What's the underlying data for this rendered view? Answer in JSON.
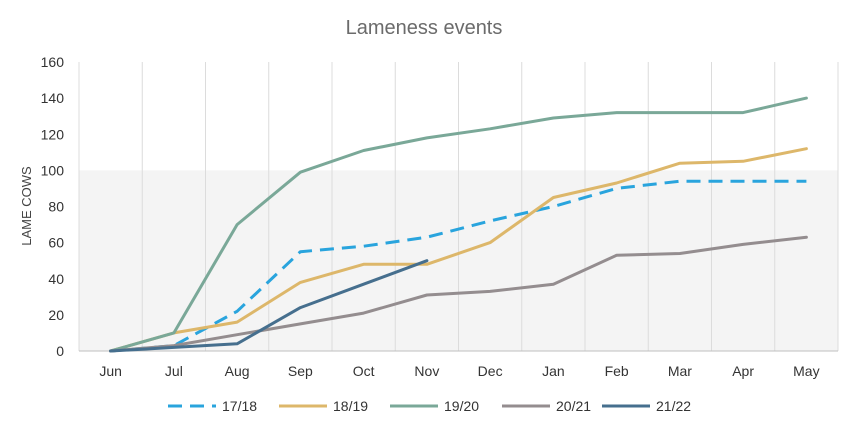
{
  "chart_data": {
    "type": "line",
    "title": "Lameness events",
    "xlabel": "",
    "ylabel": "LAME COWS",
    "ylim": [
      0,
      160
    ],
    "yticks": [
      0,
      20,
      40,
      60,
      80,
      100,
      120,
      140,
      160
    ],
    "grid": "vertical",
    "legend_position": "bottom",
    "categories": [
      "Jun",
      "Jul",
      "Aug",
      "Sep",
      "Oct",
      "Nov",
      "Dec",
      "Jan",
      "Feb",
      "Mar",
      "Apr",
      "May"
    ],
    "series": [
      {
        "name": "17/18",
        "color": "#29a4dd",
        "dash": true,
        "values": [
          0,
          3,
          22,
          55,
          58,
          63,
          72,
          80,
          90,
          94,
          94,
          94
        ]
      },
      {
        "name": "18/19",
        "color": "#ddb76a",
        "dash": false,
        "values": [
          0,
          10,
          16,
          38,
          48,
          48,
          60,
          85,
          93,
          104,
          105,
          112
        ]
      },
      {
        "name": "19/20",
        "color": "#7aa898",
        "dash": false,
        "values": [
          0,
          10,
          70,
          99,
          111,
          118,
          123,
          129,
          132,
          132,
          132,
          140
        ]
      },
      {
        "name": "20/21",
        "color": "#948d8f",
        "dash": false,
        "values": [
          0,
          3,
          9,
          15,
          21,
          31,
          33,
          37,
          53,
          54,
          59,
          63
        ]
      },
      {
        "name": "21/22",
        "color": "#466f8e",
        "dash": false,
        "values": [
          0,
          2,
          4,
          24,
          37,
          50,
          null,
          null,
          null,
          null,
          null,
          null
        ]
      }
    ]
  }
}
